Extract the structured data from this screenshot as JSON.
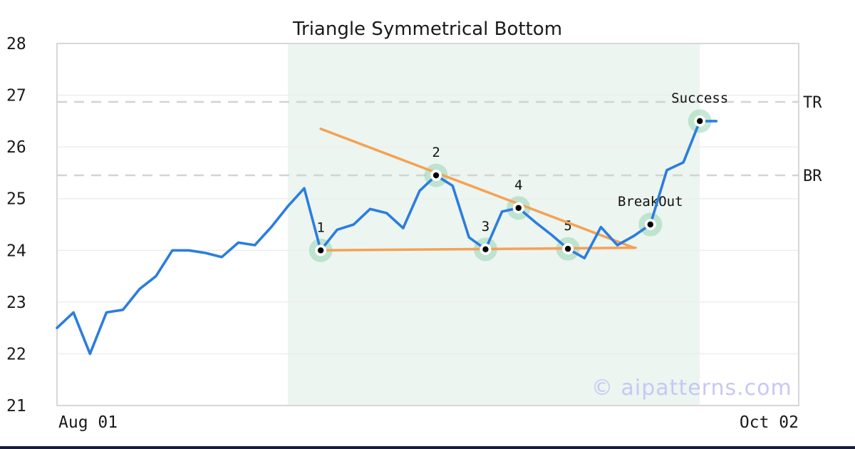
{
  "chart_data": {
    "type": "line",
    "title": "Triangle Symmetrical Bottom",
    "watermark": "© aipatterns.com",
    "xlim": [
      0,
      45
    ],
    "ylim": [
      21,
      28
    ],
    "grid": "horizontal",
    "legend": "none",
    "y_ticks": [
      28,
      27,
      26,
      25,
      24,
      23,
      22,
      21
    ],
    "x_ticks": [
      {
        "label": "Aug 01",
        "align": "left"
      },
      {
        "label": "Oct 02",
        "align": "right"
      }
    ],
    "series": [
      {
        "name": "price",
        "x_start": 0,
        "x_step": 1,
        "values": [
          22.5,
          22.8,
          22.0,
          22.8,
          22.85,
          23.25,
          23.5,
          24.0,
          24.0,
          23.95,
          23.87,
          24.15,
          24.1,
          24.45,
          24.85,
          25.2,
          24.0,
          24.4,
          24.5,
          24.8,
          24.72,
          24.43,
          25.15,
          25.45,
          25.25,
          24.25,
          24.02,
          24.75,
          24.82,
          24.55,
          24.3,
          24.03,
          23.85,
          24.45,
          24.1,
          24.28,
          24.5,
          25.55,
          25.7,
          26.5,
          26.5
        ]
      }
    ],
    "pattern_points": [
      {
        "label": "1",
        "x": 16,
        "y": 24.0
      },
      {
        "label": "2",
        "x": 23,
        "y": 25.45
      },
      {
        "label": "3",
        "x": 26,
        "y": 24.02
      },
      {
        "label": "4",
        "x": 28,
        "y": 24.82
      },
      {
        "label": "5",
        "x": 31,
        "y": 24.03
      },
      {
        "label": "BreakOut",
        "x": 36,
        "y": 24.5
      },
      {
        "label": "Success",
        "x": 39,
        "y": 26.5
      }
    ],
    "trendlines": [
      {
        "name": "upper-trendline",
        "from": [
          16.0,
          26.35
        ],
        "to": [
          35.0,
          24.05
        ]
      },
      {
        "name": "lower-trendline",
        "from": [
          16.0,
          24.0
        ],
        "to": [
          35.1,
          24.05
        ]
      }
    ],
    "levels": [
      {
        "label": "TR",
        "value": 26.87
      },
      {
        "label": "BR",
        "value": 25.45
      }
    ],
    "shaded_region": {
      "x_from": 14,
      "x_to": 39
    },
    "colors": {
      "line": "#2b7de0",
      "trendline": "#f4a254",
      "marker_halo": "#8fd1ab",
      "region": "#ecf5f0",
      "grid": "#ededed",
      "border": "#d7d7d7",
      "dashed": "#d3d3d3",
      "text": "#1a1a1a",
      "watermark": "#c7c8f3",
      "bottom_bar": "#161d3d"
    }
  }
}
